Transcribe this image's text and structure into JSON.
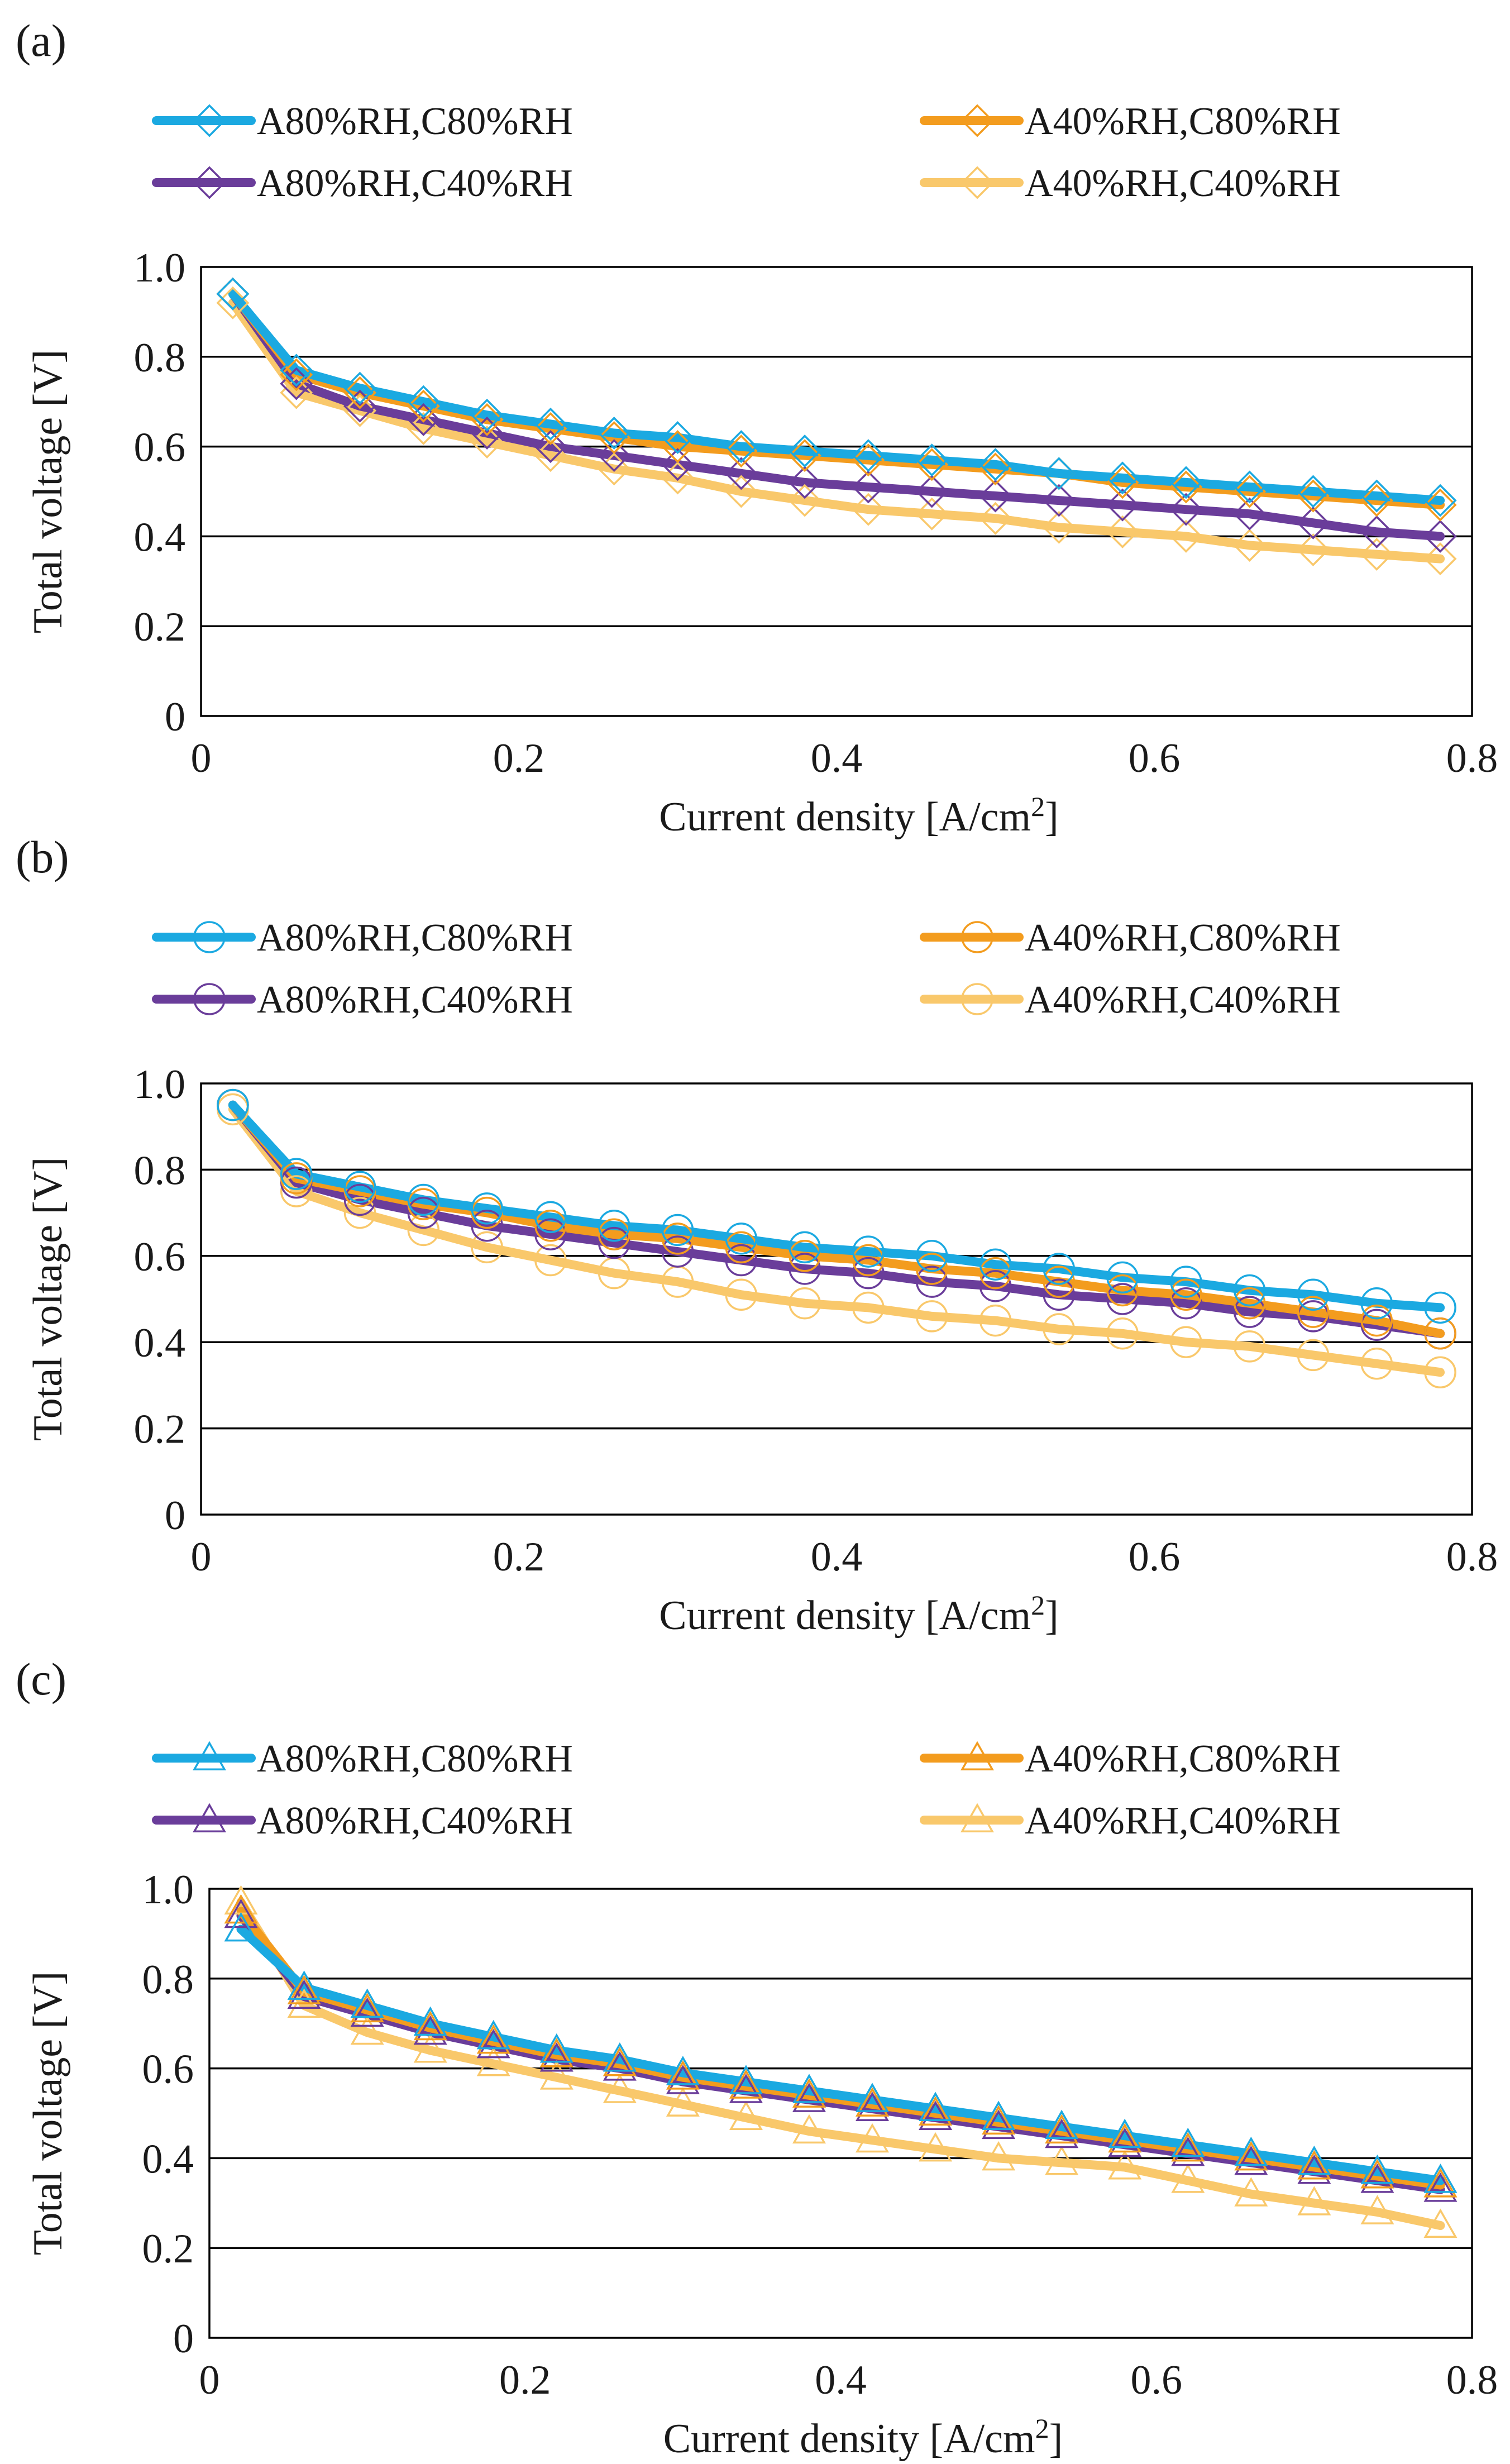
{
  "colors": {
    "A80C80": "#1ba9e1",
    "A80C40": "#6a3d9a",
    "A40C80": "#f39c1e",
    "A40C40": "#f9c86b"
  },
  "chart_data": [
    {
      "panel_label": "(a)",
      "type": "line",
      "marker": "diamond",
      "xlabel": "Current density [A/cm",
      "xlabel_sup": "2",
      "xlabel_end": "]",
      "ylabel": "Total voltage [V]",
      "xlim": [
        0,
        0.8
      ],
      "ylim": [
        0,
        1.0
      ],
      "xticks": [
        "0",
        "0.2",
        "0.4",
        "0.6",
        "0.8"
      ],
      "yticks": [
        "0",
        "0.2",
        "0.4",
        "0.6",
        "0.8",
        "1.0"
      ],
      "x": [
        0.02,
        0.06,
        0.1,
        0.14,
        0.18,
        0.22,
        0.26,
        0.3,
        0.34,
        0.38,
        0.42,
        0.46,
        0.5,
        0.54,
        0.58,
        0.62,
        0.66,
        0.7,
        0.74,
        0.78
      ],
      "series": [
        {
          "name": "A80%RH,C80%RH",
          "color_key": "A80C80",
          "values": [
            0.94,
            0.77,
            0.73,
            0.7,
            0.67,
            0.65,
            0.63,
            0.62,
            0.6,
            0.59,
            0.58,
            0.57,
            0.56,
            0.54,
            0.53,
            0.52,
            0.51,
            0.5,
            0.49,
            0.48
          ]
        },
        {
          "name": "A80%RH,C40%RH",
          "color_key": "A80C40",
          "values": [
            0.94,
            0.74,
            0.69,
            0.66,
            0.63,
            0.6,
            0.58,
            0.56,
            0.54,
            0.52,
            0.51,
            0.5,
            0.49,
            0.48,
            0.47,
            0.46,
            0.45,
            0.43,
            0.41,
            0.4
          ]
        },
        {
          "name": "A40%RH,C80%RH",
          "color_key": "A40C80",
          "values": [
            0.94,
            0.76,
            0.72,
            0.69,
            0.66,
            0.64,
            0.62,
            0.6,
            0.59,
            0.58,
            0.57,
            0.56,
            0.55,
            0.54,
            0.52,
            0.51,
            0.5,
            0.49,
            0.48,
            0.47
          ]
        },
        {
          "name": "A40%RH,C40%RH",
          "color_key": "A40C40",
          "values": [
            0.92,
            0.72,
            0.68,
            0.64,
            0.61,
            0.58,
            0.55,
            0.53,
            0.5,
            0.48,
            0.46,
            0.45,
            0.44,
            0.42,
            0.41,
            0.4,
            0.38,
            0.37,
            0.36,
            0.35
          ]
        }
      ]
    },
    {
      "panel_label": "(b)",
      "type": "line",
      "marker": "circle",
      "xlabel": "Current density [A/cm",
      "xlabel_sup": "2",
      "xlabel_end": "]",
      "ylabel": "Total voltage [V]",
      "xlim": [
        0,
        0.8
      ],
      "ylim": [
        0,
        1.0
      ],
      "xticks": [
        "0",
        "0.2",
        "0.4",
        "0.6",
        "0.8"
      ],
      "yticks": [
        "0",
        "0.2",
        "0.4",
        "0.6",
        "0.8",
        "1.0"
      ],
      "x": [
        0.02,
        0.06,
        0.1,
        0.14,
        0.18,
        0.22,
        0.26,
        0.3,
        0.34,
        0.38,
        0.42,
        0.46,
        0.5,
        0.54,
        0.58,
        0.62,
        0.66,
        0.7,
        0.74,
        0.78
      ],
      "series": [
        {
          "name": "A80%RH,C80%RH",
          "color_key": "A80C80",
          "values": [
            0.95,
            0.79,
            0.76,
            0.73,
            0.71,
            0.69,
            0.67,
            0.66,
            0.64,
            0.62,
            0.61,
            0.6,
            0.58,
            0.57,
            0.55,
            0.54,
            0.52,
            0.51,
            0.49,
            0.48
          ]
        },
        {
          "name": "A80%RH,C40%RH",
          "color_key": "A80C40",
          "values": [
            0.95,
            0.77,
            0.73,
            0.7,
            0.67,
            0.65,
            0.63,
            0.61,
            0.59,
            0.57,
            0.56,
            0.54,
            0.53,
            0.51,
            0.5,
            0.49,
            0.47,
            0.46,
            0.44,
            0.42
          ]
        },
        {
          "name": "A40%RH,C80%RH",
          "color_key": "A40C80",
          "values": [
            0.95,
            0.78,
            0.75,
            0.72,
            0.7,
            0.67,
            0.65,
            0.64,
            0.62,
            0.6,
            0.59,
            0.57,
            0.56,
            0.54,
            0.52,
            0.51,
            0.49,
            0.47,
            0.45,
            0.42
          ]
        },
        {
          "name": "A40%RH,C40%RH",
          "color_key": "A40C40",
          "values": [
            0.94,
            0.75,
            0.7,
            0.66,
            0.62,
            0.59,
            0.56,
            0.54,
            0.51,
            0.49,
            0.48,
            0.46,
            0.45,
            0.43,
            0.42,
            0.4,
            0.39,
            0.37,
            0.35,
            0.33
          ]
        }
      ]
    },
    {
      "panel_label": "(c)",
      "type": "line",
      "marker": "triangle",
      "xlabel": "Current density [A/cm",
      "xlabel_sup": "2",
      "xlabel_end": "]",
      "ylabel": "Total voltage [V]",
      "xlim": [
        0,
        0.8
      ],
      "ylim": [
        0,
        1.0
      ],
      "xticks": [
        "0",
        "0.2",
        "0.4",
        "0.6",
        "0.8"
      ],
      "yticks": [
        "0",
        "0.2",
        "0.4",
        "0.6",
        "0.8",
        "1.0"
      ],
      "x": [
        0.02,
        0.06,
        0.1,
        0.14,
        0.18,
        0.22,
        0.26,
        0.3,
        0.34,
        0.38,
        0.42,
        0.46,
        0.5,
        0.54,
        0.58,
        0.62,
        0.66,
        0.7,
        0.74,
        0.78
      ],
      "series": [
        {
          "name": "A80%RH,C80%RH",
          "color_key": "A80C80",
          "values": [
            0.91,
            0.78,
            0.74,
            0.7,
            0.67,
            0.64,
            0.62,
            0.59,
            0.57,
            0.55,
            0.53,
            0.51,
            0.49,
            0.47,
            0.45,
            0.43,
            0.41,
            0.39,
            0.37,
            0.35
          ]
        },
        {
          "name": "A80%RH,C40%RH",
          "color_key": "A80C40",
          "values": [
            0.94,
            0.76,
            0.72,
            0.68,
            0.65,
            0.62,
            0.6,
            0.57,
            0.55,
            0.53,
            0.51,
            0.49,
            0.47,
            0.45,
            0.43,
            0.41,
            0.39,
            0.37,
            0.35,
            0.33
          ]
        },
        {
          "name": "A40%RH,C80%RH",
          "color_key": "A40C80",
          "values": [
            0.95,
            0.77,
            0.73,
            0.69,
            0.66,
            0.63,
            0.61,
            0.58,
            0.56,
            0.54,
            0.52,
            0.5,
            0.48,
            0.46,
            0.44,
            0.42,
            0.4,
            0.38,
            0.36,
            0.34
          ]
        },
        {
          "name": "A40%RH,C40%RH",
          "color_key": "A40C40",
          "values": [
            0.97,
            0.74,
            0.68,
            0.64,
            0.61,
            0.58,
            0.55,
            0.52,
            0.49,
            0.46,
            0.44,
            0.42,
            0.4,
            0.39,
            0.38,
            0.35,
            0.32,
            0.3,
            0.28,
            0.25
          ]
        }
      ]
    }
  ]
}
